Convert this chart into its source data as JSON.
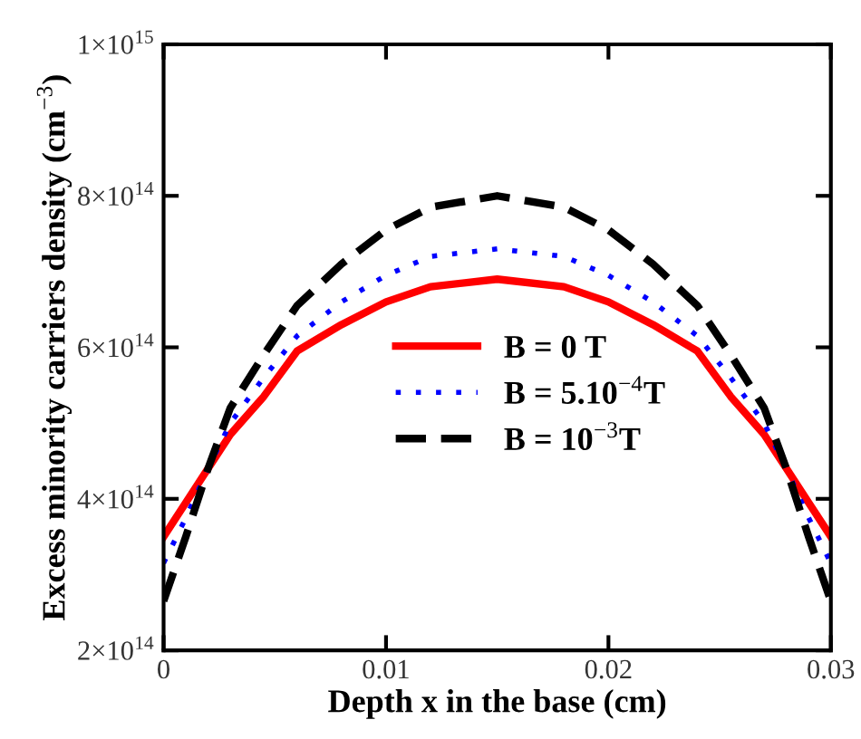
{
  "chart_data": {
    "type": "line",
    "xlabel": "Depth x in the base (cm)",
    "ylabel": "Excess minority carriers density (cm$^{−3}$)",
    "x": [
      0,
      0.001,
      0.002,
      0.003,
      0.0045,
      0.006,
      0.008,
      0.01,
      0.012,
      0.015,
      0.018,
      0.02,
      0.022,
      0.024,
      0.0255,
      0.027,
      0.028,
      0.029,
      0.03
    ],
    "series": [
      {
        "name": "B = 0 T",
        "color": "#ff0000",
        "line_style": "solid",
        "values": [
          350000000000000.0,
          395000000000000.0,
          440000000000000.0,
          485000000000000.0,
          535000000000000.0,
          595000000000000.0,
          630000000000000.0,
          660000000000000.0,
          680000000000000.0,
          690000000000000.0,
          680000000000000.0,
          660000000000000.0,
          630000000000000.0,
          595000000000000.0,
          535000000000000.0,
          485000000000000.0,
          440000000000000.0,
          395000000000000.0,
          350000000000000.0
        ]
      },
      {
        "name": "B = 5.10$^{−4}$T",
        "color": "#0000ff",
        "line_style": "dotted",
        "values": [
          315000000000000.0,
          375000000000000.0,
          440000000000000.0,
          500000000000000.0,
          560000000000000.0,
          615000000000000.0,
          660000000000000.0,
          695000000000000.0,
          720000000000000.0,
          730000000000000.0,
          720000000000000.0,
          695000000000000.0,
          660000000000000.0,
          615000000000000.0,
          560000000000000.0,
          500000000000000.0,
          440000000000000.0,
          375000000000000.0,
          315000000000000.0
        ]
      },
      {
        "name": "B = 10$^{−3}$T",
        "color": "#000000",
        "line_style": "dashed",
        "values": [
          265000000000000.0,
          350000000000000.0,
          440000000000000.0,
          520000000000000.0,
          590000000000000.0,
          655000000000000.0,
          710000000000000.0,
          755000000000000.0,
          785000000000000.0,
          800000000000000.0,
          785000000000000.0,
          755000000000000.0,
          710000000000000.0,
          655000000000000.0,
          590000000000000.0,
          520000000000000.0,
          440000000000000.0,
          350000000000000.0,
          265000000000000.0
        ]
      }
    ],
    "xlim": [
      0,
      0.03
    ],
    "xticks": [
      0,
      0.01,
      0.02,
      0.03
    ],
    "ylim": [
      200000000000000.0,
      1000000000000000.0
    ],
    "yticks": [
      {
        "value": 200000000000000.0,
        "label": "2×10$^{14}$"
      },
      {
        "value": 400000000000000.0,
        "label": "4×10$^{14}$"
      },
      {
        "value": 600000000000000.0,
        "label": "6×10$^{14}$"
      },
      {
        "value": 800000000000000.0,
        "label": "8×10$^{14}$"
      },
      {
        "value": 1000000000000000.0,
        "label": "1×10$^{15}$"
      }
    ],
    "grid": false,
    "legend": "center",
    "marker": "none"
  }
}
